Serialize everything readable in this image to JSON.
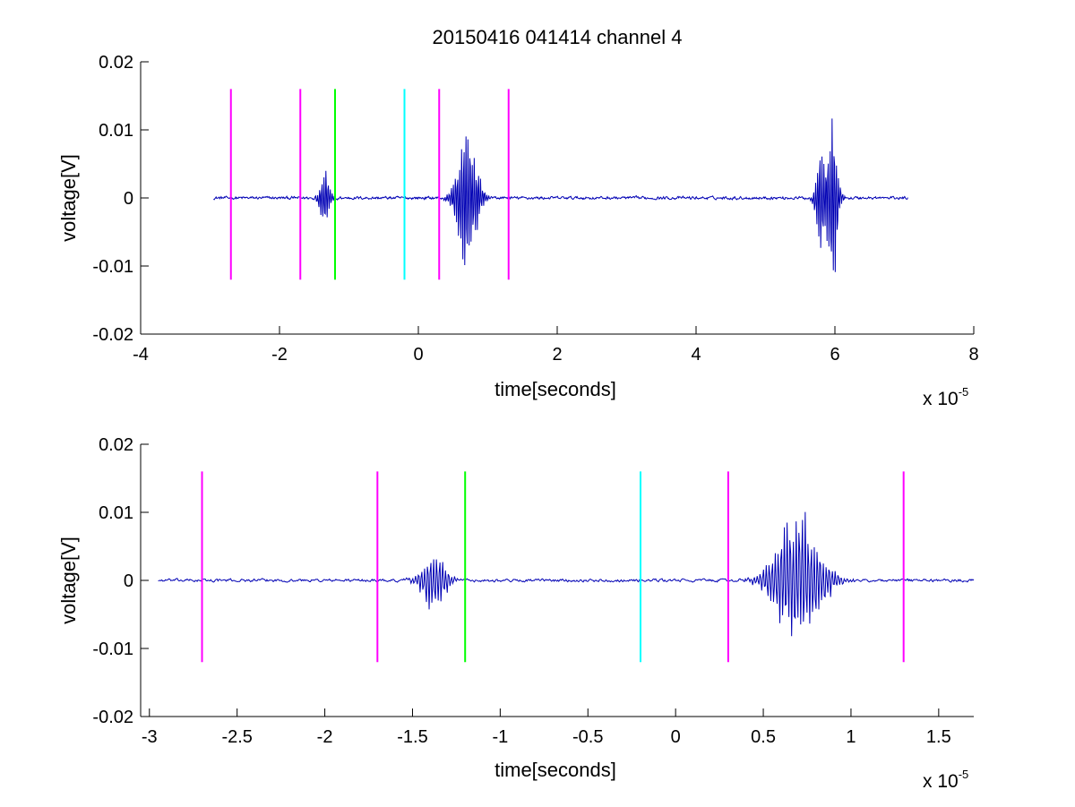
{
  "chart_data": [
    {
      "type": "line",
      "title": "20150416 041414 channel 4",
      "xlabel": "time[seconds]",
      "ylabel": "voltage[V]",
      "x_multiplier_label": "x 10",
      "x_multiplier_exponent": "-5",
      "xlim": [
        -4,
        8
      ],
      "ylim": [
        -0.02,
        0.02
      ],
      "x_ticks": [
        -4,
        -2,
        0,
        2,
        4,
        6,
        8
      ],
      "x_tick_labels": [
        "-4",
        "-2",
        "0",
        "2",
        "4",
        "6",
        "8"
      ],
      "y_ticks": [
        0.02,
        0.01,
        0,
        -0.01,
        -0.02
      ],
      "y_tick_labels": [
        "0.02",
        "0.01",
        "0",
        "-0.01",
        "-0.02"
      ],
      "grid": false,
      "series_color": "#0000b4",
      "markers": [
        {
          "x": -2.7,
          "color": "#ff00ff",
          "y_range": [
            -0.012,
            0.016
          ]
        },
        {
          "x": -1.7,
          "color": "#ff00ff",
          "y_range": [
            -0.012,
            0.016
          ]
        },
        {
          "x": -1.2,
          "color": "#00ff00",
          "y_range": [
            -0.012,
            0.016
          ]
        },
        {
          "x": -0.2,
          "color": "#00ffff",
          "y_range": [
            -0.012,
            0.016
          ]
        },
        {
          "x": 0.3,
          "color": "#ff00ff",
          "y_range": [
            -0.012,
            0.016
          ]
        },
        {
          "x": 1.3,
          "color": "#ff00ff",
          "y_range": [
            -0.012,
            0.016
          ]
        }
      ],
      "signal": {
        "x_range": [
          -2.95,
          7.05
        ],
        "noise_amplitude": 0.00035,
        "bursts": [
          {
            "center": -1.35,
            "width": 0.12,
            "amplitude": 0.005
          },
          {
            "center": 0.7,
            "width": 0.25,
            "amplitude": 0.011
          },
          {
            "center": 5.8,
            "width": 0.12,
            "amplitude": 0.0085
          },
          {
            "center": 5.97,
            "width": 0.12,
            "amplitude": 0.0145
          }
        ]
      }
    },
    {
      "type": "line",
      "title": "",
      "xlabel": "time[seconds]",
      "ylabel": "voltage[V]",
      "x_multiplier_label": "x 10",
      "x_multiplier_exponent": "-5",
      "xlim": [
        -3.05,
        1.7
      ],
      "ylim": [
        -0.02,
        0.02
      ],
      "x_ticks": [
        -3,
        -2.5,
        -2,
        -1.5,
        -1,
        -0.5,
        0,
        0.5,
        1,
        1.5
      ],
      "x_tick_labels": [
        "-3",
        "-2.5",
        "-2",
        "-1.5",
        "-1",
        "-0.5",
        "0",
        "0.5",
        "1",
        "1.5"
      ],
      "y_ticks": [
        0.02,
        0.01,
        0,
        -0.01,
        -0.02
      ],
      "y_tick_labels": [
        "0.02",
        "0.01",
        "0",
        "-0.01",
        "-0.02"
      ],
      "grid": false,
      "series_color": "#0000b4",
      "markers": [
        {
          "x": -2.7,
          "color": "#ff00ff",
          "y_range": [
            -0.012,
            0.016
          ]
        },
        {
          "x": -1.7,
          "color": "#ff00ff",
          "y_range": [
            -0.012,
            0.016
          ]
        },
        {
          "x": -1.2,
          "color": "#00ff00",
          "y_range": [
            -0.012,
            0.016
          ]
        },
        {
          "x": -0.2,
          "color": "#00ffff",
          "y_range": [
            -0.012,
            0.016
          ]
        },
        {
          "x": 0.3,
          "color": "#ff00ff",
          "y_range": [
            -0.012,
            0.016
          ]
        },
        {
          "x": 1.3,
          "color": "#ff00ff",
          "y_range": [
            -0.012,
            0.016
          ]
        }
      ],
      "signal": {
        "x_range": [
          -2.95,
          1.7
        ],
        "noise_amplitude": 0.00035,
        "bursts": [
          {
            "center": -1.38,
            "width": 0.12,
            "amplitude": 0.005
          },
          {
            "center": 0.7,
            "width": 0.22,
            "amplitude": 0.011
          }
        ]
      }
    }
  ]
}
